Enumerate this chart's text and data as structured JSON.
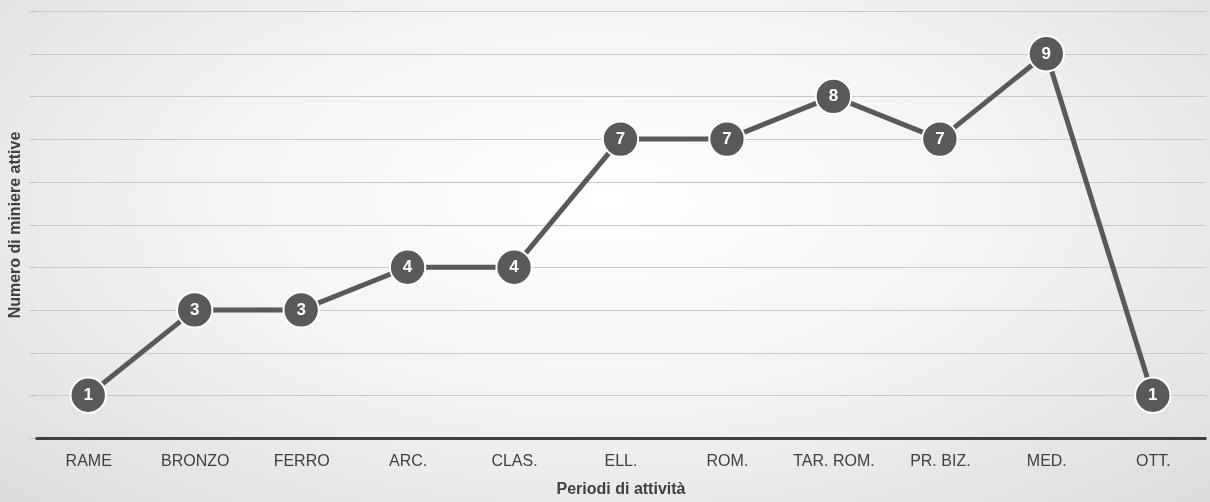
{
  "chart_data": {
    "type": "line",
    "xlabel": "Periodi di attività",
    "ylabel": "Numero di miniere attive",
    "categories": [
      "RAME",
      "BRONZO",
      "FERRO",
      "ARC.",
      "CLAS.",
      "ELL.",
      "ROM.",
      "TAR. ROM.",
      "PR. BIZ.",
      "MED.",
      "OTT."
    ],
    "series": [
      {
        "color": "#595959",
        "values": [
          1,
          3,
          3,
          4,
          4,
          7,
          7,
          8,
          7,
          9,
          1
        ]
      }
    ],
    "ylim": [
      0,
      10
    ],
    "yticks": [
      {
        "value": 0,
        "label": null
      },
      {
        "value": 1,
        "label": null
      },
      {
        "value": 2,
        "label": null
      },
      {
        "value": 3,
        "label": null
      },
      {
        "value": 4,
        "label": null
      },
      {
        "value": 5,
        "label": null
      },
      {
        "value": 6,
        "label": null
      },
      {
        "value": 7,
        "label": null
      },
      {
        "value": 8,
        "label": null
      },
      {
        "value": 9,
        "label": null
      },
      {
        "value": 10,
        "label": null
      }
    ],
    "tick_labels": "x",
    "grid": "y",
    "marker": "circle",
    "line_style": "solid",
    "data_labels": true
  }
}
